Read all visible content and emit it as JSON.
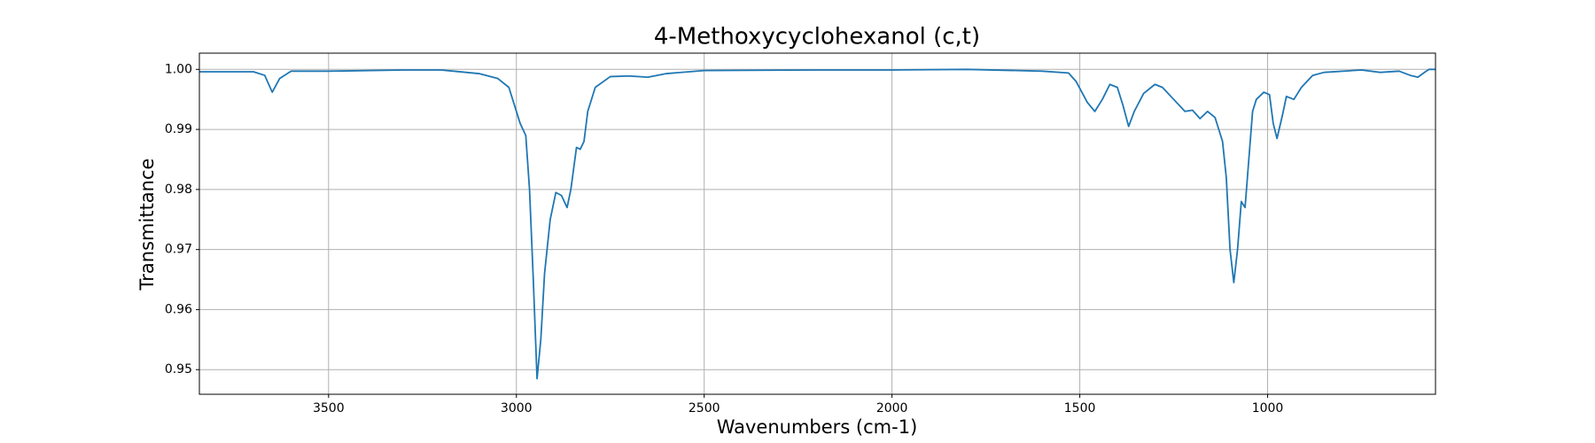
{
  "chart_data": {
    "type": "line",
    "title": "4-Methoxycyclohexanol (c,t)",
    "x_label": "Wavenumbers (cm-1)",
    "y_label": "Transmittance",
    "color": "#1f77b4",
    "grid": true,
    "xlim": [
      3844,
      553
    ],
    "ylim": [
      0.9459,
      1.0027
    ],
    "xticks": [
      3500,
      3000,
      2500,
      2000,
      1500,
      1000
    ],
    "yticks": [
      0.95,
      0.96,
      0.97,
      0.98,
      0.99,
      {
        "value": 1,
        "label": "1.00"
      }
    ],
    "x": [
      3844,
      3700,
      3670,
      3650,
      3630,
      3600,
      3500,
      3300,
      3200,
      3100,
      3050,
      3020,
      3000,
      2990,
      2975,
      2965,
      2955,
      2945,
      2935,
      2925,
      2910,
      2895,
      2880,
      2865,
      2855,
      2840,
      2830,
      2820,
      2810,
      2790,
      2750,
      2700,
      2650,
      2600,
      2500,
      2200,
      2000,
      1800,
      1600,
      1530,
      1510,
      1480,
      1460,
      1440,
      1420,
      1400,
      1385,
      1370,
      1355,
      1330,
      1300,
      1280,
      1250,
      1220,
      1200,
      1180,
      1160,
      1140,
      1120,
      1110,
      1100,
      1090,
      1080,
      1070,
      1060,
      1050,
      1040,
      1030,
      1010,
      995,
      985,
      975,
      960,
      950,
      930,
      910,
      880,
      850,
      750,
      700,
      650,
      620,
      600,
      580,
      570,
      553
    ],
    "values": [
      0.9996,
      0.9996,
      0.999,
      0.9962,
      0.9985,
      0.9997,
      0.9997,
      0.9999,
      0.9999,
      0.9993,
      0.9985,
      0.997,
      0.993,
      0.991,
      0.989,
      0.98,
      0.965,
      0.9485,
      0.955,
      0.966,
      0.975,
      0.9795,
      0.979,
      0.977,
      0.98,
      0.987,
      0.9867,
      0.988,
      0.993,
      0.997,
      0.9988,
      0.9989,
      0.9987,
      0.9993,
      0.9998,
      0.9999,
      0.9999,
      1.0,
      0.9997,
      0.9994,
      0.998,
      0.9945,
      0.993,
      0.995,
      0.9975,
      0.997,
      0.994,
      0.9905,
      0.993,
      0.996,
      0.9975,
      0.997,
      0.995,
      0.993,
      0.9932,
      0.9918,
      0.993,
      0.992,
      0.988,
      0.982,
      0.97,
      0.9645,
      0.97,
      0.978,
      0.977,
      0.985,
      0.993,
      0.995,
      0.9962,
      0.9958,
      0.991,
      0.9885,
      0.9925,
      0.9955,
      0.995,
      0.997,
      0.999,
      0.9995,
      0.9999,
      0.9995,
      0.9997,
      0.999,
      0.9987,
      0.9996,
      1.0,
      1.0
    ]
  }
}
